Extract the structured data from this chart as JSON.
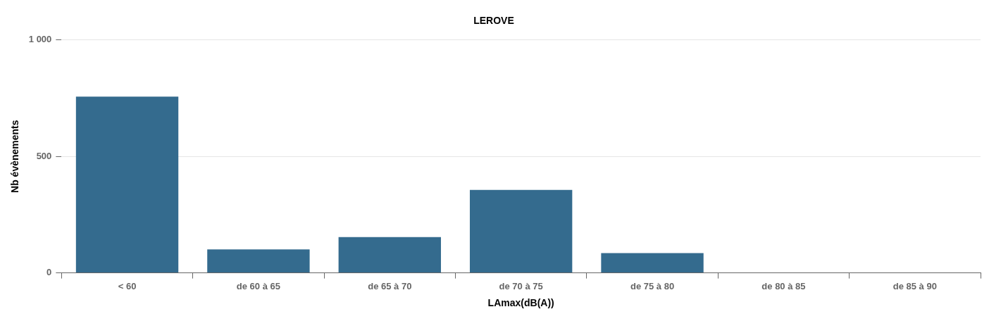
{
  "chart_data": {
    "type": "bar",
    "title": "LEROVE",
    "xlabel": "LAmax(dB(A))",
    "ylabel": "Nb évènements",
    "categories": [
      "< 60",
      "de 60 à 65",
      "de 65 à 70",
      "de 70 à 75",
      "de 75 à 80",
      "de 80 à 85",
      "de 85 à 90"
    ],
    "values": [
      757,
      101,
      154,
      356,
      85,
      2,
      2
    ],
    "color": "#346b8e",
    "ylim": [
      0,
      1000
    ],
    "yticks": [
      0,
      500,
      {
        "value": 1000,
        "label": "1 000"
      }
    ],
    "grid": "y"
  }
}
